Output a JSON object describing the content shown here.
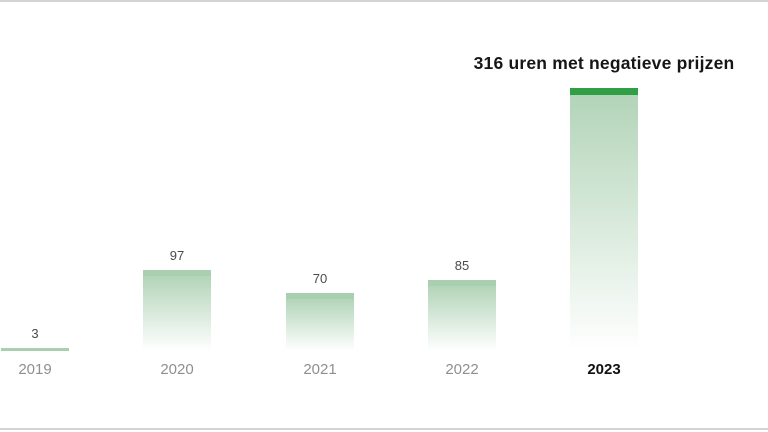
{
  "chart_data": {
    "type": "bar",
    "title": "316 uren met negatieve prijzen",
    "categories": [
      "2019",
      "2020",
      "2021",
      "2022",
      "2023"
    ],
    "values": [
      3,
      97,
      70,
      85,
      316
    ],
    "value_labels": [
      "3",
      "97",
      "70",
      "85",
      ""
    ],
    "highlight_index": 4,
    "highlight_category": "2023",
    "xlabel": "",
    "ylabel": "",
    "ylim": [
      0,
      316
    ],
    "grid": false,
    "legend": false,
    "colors": {
      "background": "#ffffff",
      "bar_cap": "#a8d0ae",
      "bar_cap_highlight": "#2f9e44",
      "bar_body_green": "#84ba8d",
      "title_text": "#161616",
      "value_text": "#4a4a4a",
      "year_text": "#8f8f8f",
      "year_highlight_text": "#111111",
      "edge_rule": "#d3d3d3"
    }
  }
}
